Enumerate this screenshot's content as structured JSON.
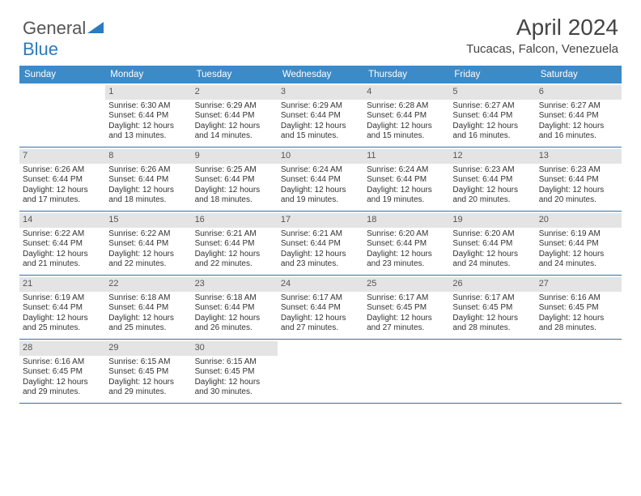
{
  "logo": {
    "text_a": "General",
    "text_b": "Blue"
  },
  "title": "April 2024",
  "location": "Tucacas, Falcon, Venezuela",
  "header_bg": "#3b8bc9",
  "divider_color": "#3b6fa0",
  "daynum_bg": "#e4e4e4",
  "days": [
    "Sunday",
    "Monday",
    "Tuesday",
    "Wednesday",
    "Thursday",
    "Friday",
    "Saturday"
  ],
  "weeks": [
    [
      {
        "n": "",
        "sr": "",
        "ss": "",
        "dl": ""
      },
      {
        "n": "1",
        "sr": "6:30 AM",
        "ss": "6:44 PM",
        "dl": "12 hours and 13 minutes."
      },
      {
        "n": "2",
        "sr": "6:29 AM",
        "ss": "6:44 PM",
        "dl": "12 hours and 14 minutes."
      },
      {
        "n": "3",
        "sr": "6:29 AM",
        "ss": "6:44 PM",
        "dl": "12 hours and 15 minutes."
      },
      {
        "n": "4",
        "sr": "6:28 AM",
        "ss": "6:44 PM",
        "dl": "12 hours and 15 minutes."
      },
      {
        "n": "5",
        "sr": "6:27 AM",
        "ss": "6:44 PM",
        "dl": "12 hours and 16 minutes."
      },
      {
        "n": "6",
        "sr": "6:27 AM",
        "ss": "6:44 PM",
        "dl": "12 hours and 16 minutes."
      }
    ],
    [
      {
        "n": "7",
        "sr": "6:26 AM",
        "ss": "6:44 PM",
        "dl": "12 hours and 17 minutes."
      },
      {
        "n": "8",
        "sr": "6:26 AM",
        "ss": "6:44 PM",
        "dl": "12 hours and 18 minutes."
      },
      {
        "n": "9",
        "sr": "6:25 AM",
        "ss": "6:44 PM",
        "dl": "12 hours and 18 minutes."
      },
      {
        "n": "10",
        "sr": "6:24 AM",
        "ss": "6:44 PM",
        "dl": "12 hours and 19 minutes."
      },
      {
        "n": "11",
        "sr": "6:24 AM",
        "ss": "6:44 PM",
        "dl": "12 hours and 19 minutes."
      },
      {
        "n": "12",
        "sr": "6:23 AM",
        "ss": "6:44 PM",
        "dl": "12 hours and 20 minutes."
      },
      {
        "n": "13",
        "sr": "6:23 AM",
        "ss": "6:44 PM",
        "dl": "12 hours and 20 minutes."
      }
    ],
    [
      {
        "n": "14",
        "sr": "6:22 AM",
        "ss": "6:44 PM",
        "dl": "12 hours and 21 minutes."
      },
      {
        "n": "15",
        "sr": "6:22 AM",
        "ss": "6:44 PM",
        "dl": "12 hours and 22 minutes."
      },
      {
        "n": "16",
        "sr": "6:21 AM",
        "ss": "6:44 PM",
        "dl": "12 hours and 22 minutes."
      },
      {
        "n": "17",
        "sr": "6:21 AM",
        "ss": "6:44 PM",
        "dl": "12 hours and 23 minutes."
      },
      {
        "n": "18",
        "sr": "6:20 AM",
        "ss": "6:44 PM",
        "dl": "12 hours and 23 minutes."
      },
      {
        "n": "19",
        "sr": "6:20 AM",
        "ss": "6:44 PM",
        "dl": "12 hours and 24 minutes."
      },
      {
        "n": "20",
        "sr": "6:19 AM",
        "ss": "6:44 PM",
        "dl": "12 hours and 24 minutes."
      }
    ],
    [
      {
        "n": "21",
        "sr": "6:19 AM",
        "ss": "6:44 PM",
        "dl": "12 hours and 25 minutes."
      },
      {
        "n": "22",
        "sr": "6:18 AM",
        "ss": "6:44 PM",
        "dl": "12 hours and 25 minutes."
      },
      {
        "n": "23",
        "sr": "6:18 AM",
        "ss": "6:44 PM",
        "dl": "12 hours and 26 minutes."
      },
      {
        "n": "24",
        "sr": "6:17 AM",
        "ss": "6:44 PM",
        "dl": "12 hours and 27 minutes."
      },
      {
        "n": "25",
        "sr": "6:17 AM",
        "ss": "6:45 PM",
        "dl": "12 hours and 27 minutes."
      },
      {
        "n": "26",
        "sr": "6:17 AM",
        "ss": "6:45 PM",
        "dl": "12 hours and 28 minutes."
      },
      {
        "n": "27",
        "sr": "6:16 AM",
        "ss": "6:45 PM",
        "dl": "12 hours and 28 minutes."
      }
    ],
    [
      {
        "n": "28",
        "sr": "6:16 AM",
        "ss": "6:45 PM",
        "dl": "12 hours and 29 minutes."
      },
      {
        "n": "29",
        "sr": "6:15 AM",
        "ss": "6:45 PM",
        "dl": "12 hours and 29 minutes."
      },
      {
        "n": "30",
        "sr": "6:15 AM",
        "ss": "6:45 PM",
        "dl": "12 hours and 30 minutes."
      },
      {
        "n": "",
        "sr": "",
        "ss": "",
        "dl": ""
      },
      {
        "n": "",
        "sr": "",
        "ss": "",
        "dl": ""
      },
      {
        "n": "",
        "sr": "",
        "ss": "",
        "dl": ""
      },
      {
        "n": "",
        "sr": "",
        "ss": "",
        "dl": ""
      }
    ]
  ],
  "labels": {
    "sunrise": "Sunrise: ",
    "sunset": "Sunset: ",
    "daylight": "Daylight: "
  }
}
